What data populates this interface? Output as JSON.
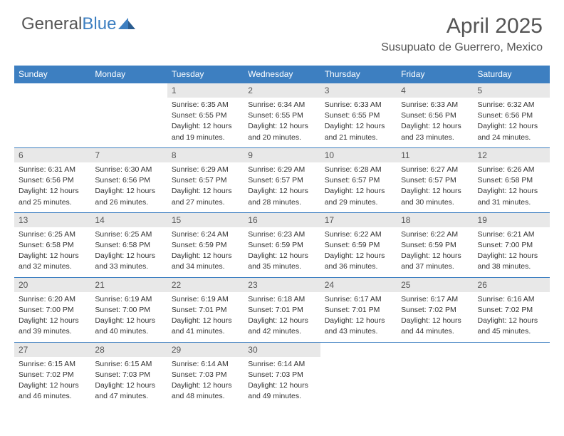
{
  "brand": {
    "part1": "General",
    "part2": "Blue"
  },
  "title": "April 2025",
  "location": "Susupuato de Guerrero, Mexico",
  "colors": {
    "accent": "#3d7fc1",
    "dayNumBg": "#e8e8e8",
    "text": "#333333",
    "headerText": "#555555",
    "background": "#ffffff"
  },
  "typography": {
    "title_fontsize": 30,
    "location_fontsize": 16,
    "dayhdr_fontsize": 12,
    "body_fontsize": 10.5
  },
  "dayHeaders": [
    "Sunday",
    "Monday",
    "Tuesday",
    "Wednesday",
    "Thursday",
    "Friday",
    "Saturday"
  ],
  "weeks": [
    [
      null,
      null,
      {
        "n": "1",
        "sr": "6:35 AM",
        "ss": "6:55 PM",
        "dl": "12 hours and 19 minutes."
      },
      {
        "n": "2",
        "sr": "6:34 AM",
        "ss": "6:55 PM",
        "dl": "12 hours and 20 minutes."
      },
      {
        "n": "3",
        "sr": "6:33 AM",
        "ss": "6:55 PM",
        "dl": "12 hours and 21 minutes."
      },
      {
        "n": "4",
        "sr": "6:33 AM",
        "ss": "6:56 PM",
        "dl": "12 hours and 23 minutes."
      },
      {
        "n": "5",
        "sr": "6:32 AM",
        "ss": "6:56 PM",
        "dl": "12 hours and 24 minutes."
      }
    ],
    [
      {
        "n": "6",
        "sr": "6:31 AM",
        "ss": "6:56 PM",
        "dl": "12 hours and 25 minutes."
      },
      {
        "n": "7",
        "sr": "6:30 AM",
        "ss": "6:56 PM",
        "dl": "12 hours and 26 minutes."
      },
      {
        "n": "8",
        "sr": "6:29 AM",
        "ss": "6:57 PM",
        "dl": "12 hours and 27 minutes."
      },
      {
        "n": "9",
        "sr": "6:29 AM",
        "ss": "6:57 PM",
        "dl": "12 hours and 28 minutes."
      },
      {
        "n": "10",
        "sr": "6:28 AM",
        "ss": "6:57 PM",
        "dl": "12 hours and 29 minutes."
      },
      {
        "n": "11",
        "sr": "6:27 AM",
        "ss": "6:57 PM",
        "dl": "12 hours and 30 minutes."
      },
      {
        "n": "12",
        "sr": "6:26 AM",
        "ss": "6:58 PM",
        "dl": "12 hours and 31 minutes."
      }
    ],
    [
      {
        "n": "13",
        "sr": "6:25 AM",
        "ss": "6:58 PM",
        "dl": "12 hours and 32 minutes."
      },
      {
        "n": "14",
        "sr": "6:25 AM",
        "ss": "6:58 PM",
        "dl": "12 hours and 33 minutes."
      },
      {
        "n": "15",
        "sr": "6:24 AM",
        "ss": "6:59 PM",
        "dl": "12 hours and 34 minutes."
      },
      {
        "n": "16",
        "sr": "6:23 AM",
        "ss": "6:59 PM",
        "dl": "12 hours and 35 minutes."
      },
      {
        "n": "17",
        "sr": "6:22 AM",
        "ss": "6:59 PM",
        "dl": "12 hours and 36 minutes."
      },
      {
        "n": "18",
        "sr": "6:22 AM",
        "ss": "6:59 PM",
        "dl": "12 hours and 37 minutes."
      },
      {
        "n": "19",
        "sr": "6:21 AM",
        "ss": "7:00 PM",
        "dl": "12 hours and 38 minutes."
      }
    ],
    [
      {
        "n": "20",
        "sr": "6:20 AM",
        "ss": "7:00 PM",
        "dl": "12 hours and 39 minutes."
      },
      {
        "n": "21",
        "sr": "6:19 AM",
        "ss": "7:00 PM",
        "dl": "12 hours and 40 minutes."
      },
      {
        "n": "22",
        "sr": "6:19 AM",
        "ss": "7:01 PM",
        "dl": "12 hours and 41 minutes."
      },
      {
        "n": "23",
        "sr": "6:18 AM",
        "ss": "7:01 PM",
        "dl": "12 hours and 42 minutes."
      },
      {
        "n": "24",
        "sr": "6:17 AM",
        "ss": "7:01 PM",
        "dl": "12 hours and 43 minutes."
      },
      {
        "n": "25",
        "sr": "6:17 AM",
        "ss": "7:02 PM",
        "dl": "12 hours and 44 minutes."
      },
      {
        "n": "26",
        "sr": "6:16 AM",
        "ss": "7:02 PM",
        "dl": "12 hours and 45 minutes."
      }
    ],
    [
      {
        "n": "27",
        "sr": "6:15 AM",
        "ss": "7:02 PM",
        "dl": "12 hours and 46 minutes."
      },
      {
        "n": "28",
        "sr": "6:15 AM",
        "ss": "7:03 PM",
        "dl": "12 hours and 47 minutes."
      },
      {
        "n": "29",
        "sr": "6:14 AM",
        "ss": "7:03 PM",
        "dl": "12 hours and 48 minutes."
      },
      {
        "n": "30",
        "sr": "6:14 AM",
        "ss": "7:03 PM",
        "dl": "12 hours and 49 minutes."
      },
      null,
      null,
      null
    ]
  ],
  "labels": {
    "sunrise": "Sunrise:",
    "sunset": "Sunset:",
    "daylight": "Daylight:"
  }
}
